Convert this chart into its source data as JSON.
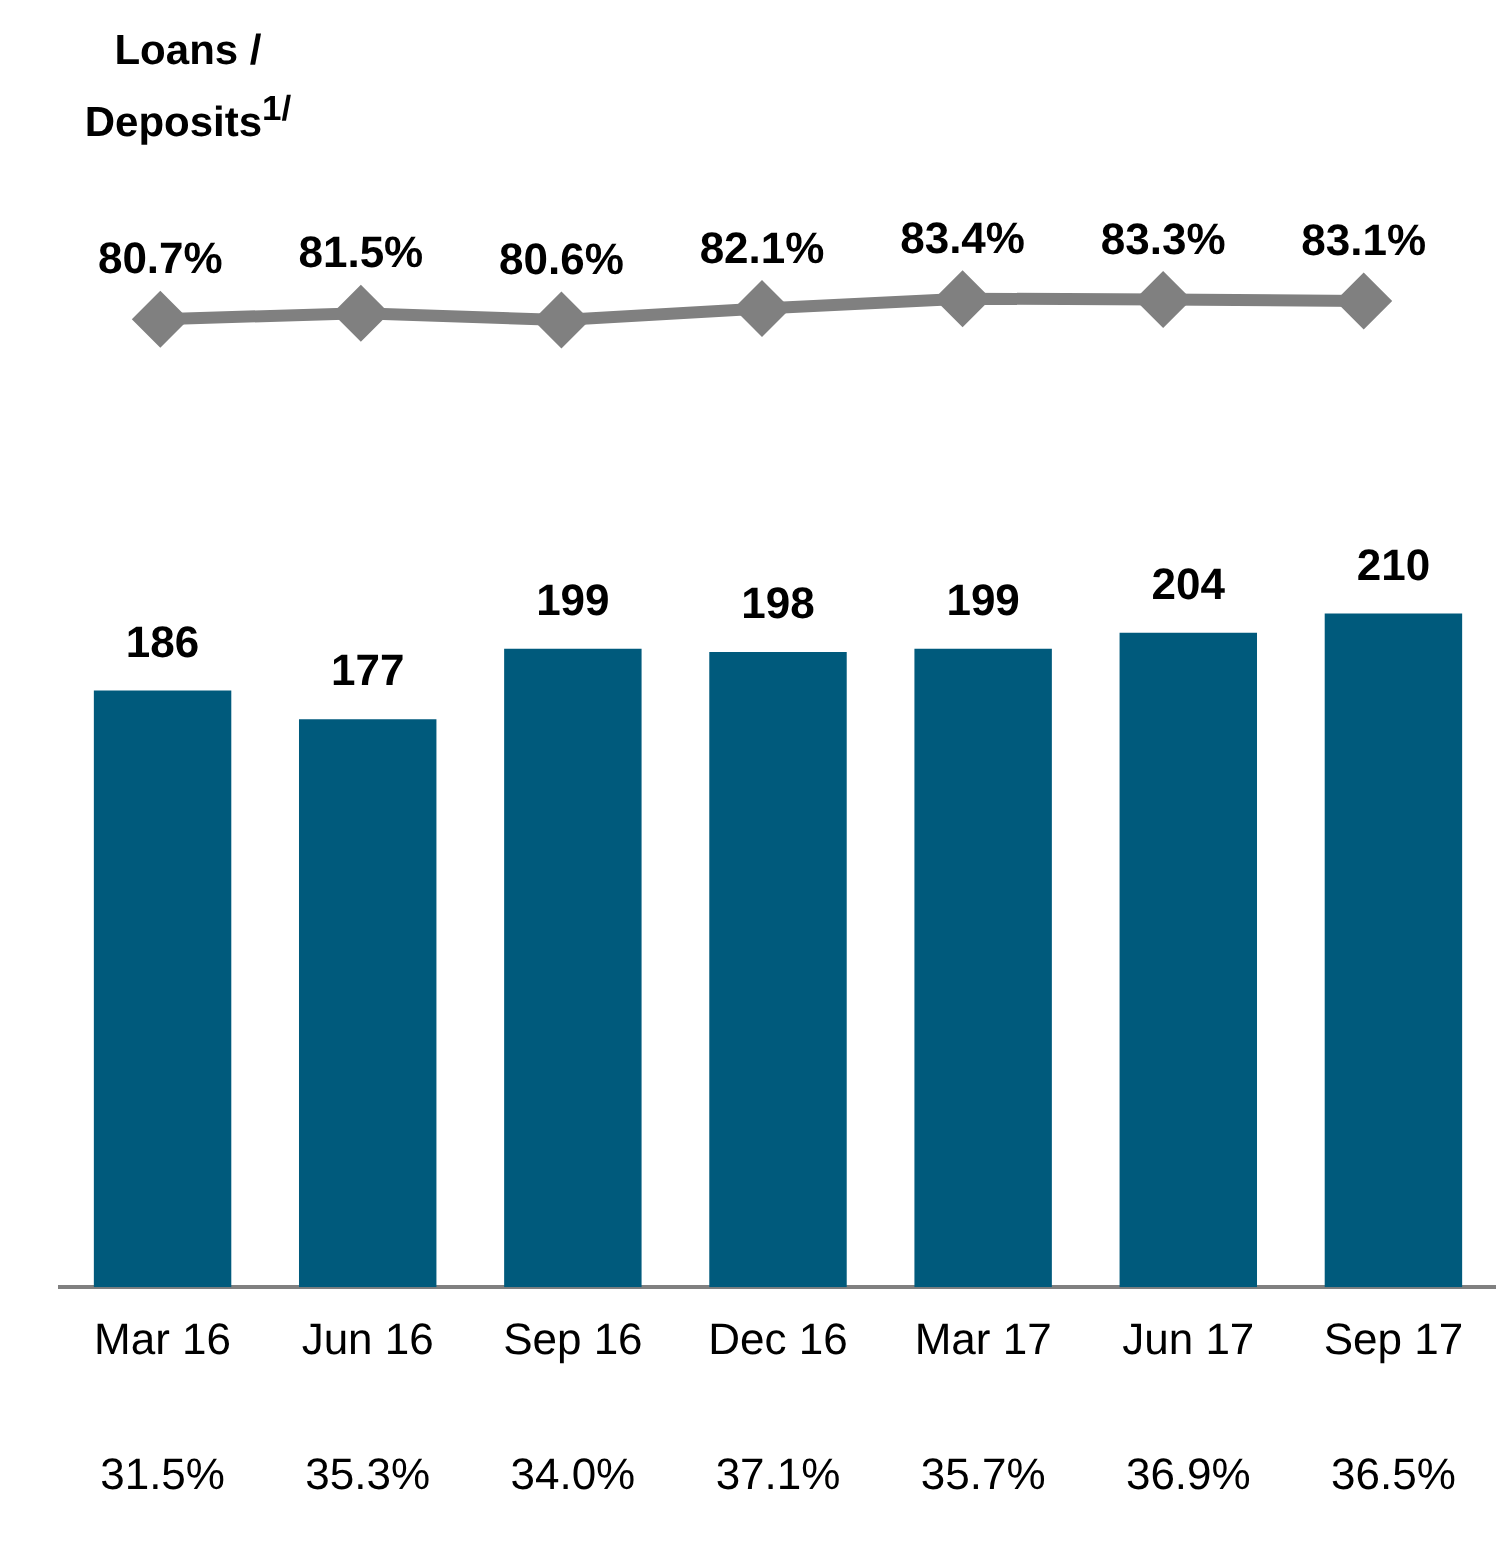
{
  "chart_data": [
    {
      "type": "line",
      "title": "Loans / Deposits$^{1/}$",
      "categories": [
        null,
        null,
        null,
        null,
        null,
        null,
        null
      ],
      "series": [
        {
          "color": "#808080",
          "values": [
            80.7,
            81.5,
            80.6,
            82.1,
            83.4,
            83.3,
            83.1
          ],
          "value_labels": [
            "80.7%",
            "81.5%",
            "80.6%",
            "82.1%",
            "83.4%",
            "83.3%",
            "83.1%"
          ]
        }
      ],
      "marker": "diamond",
      "tick_labels": false,
      "grid": false,
      "legend": false
    },
    {
      "type": "bar",
      "categories": [
        "Mar 16",
        "Jun 16",
        "Sep 16",
        "Dec 16",
        "Mar 17",
        "Jun 17",
        "Sep 17"
      ],
      "series": [
        {
          "color": "#005a7c",
          "values": [
            186,
            177,
            199,
            198,
            199,
            204,
            210
          ],
          "value_labels": [
            "186",
            "177",
            "199",
            "198",
            "199",
            "204",
            "210"
          ]
        }
      ],
      "tick_labels": "x",
      "grid": false,
      "legend": false,
      "annotations": [
        "31.5%",
        "35.3%",
        "34.0%",
        "37.1%",
        "35.7%",
        "36.9%",
        "36.5%"
      ]
    }
  ]
}
